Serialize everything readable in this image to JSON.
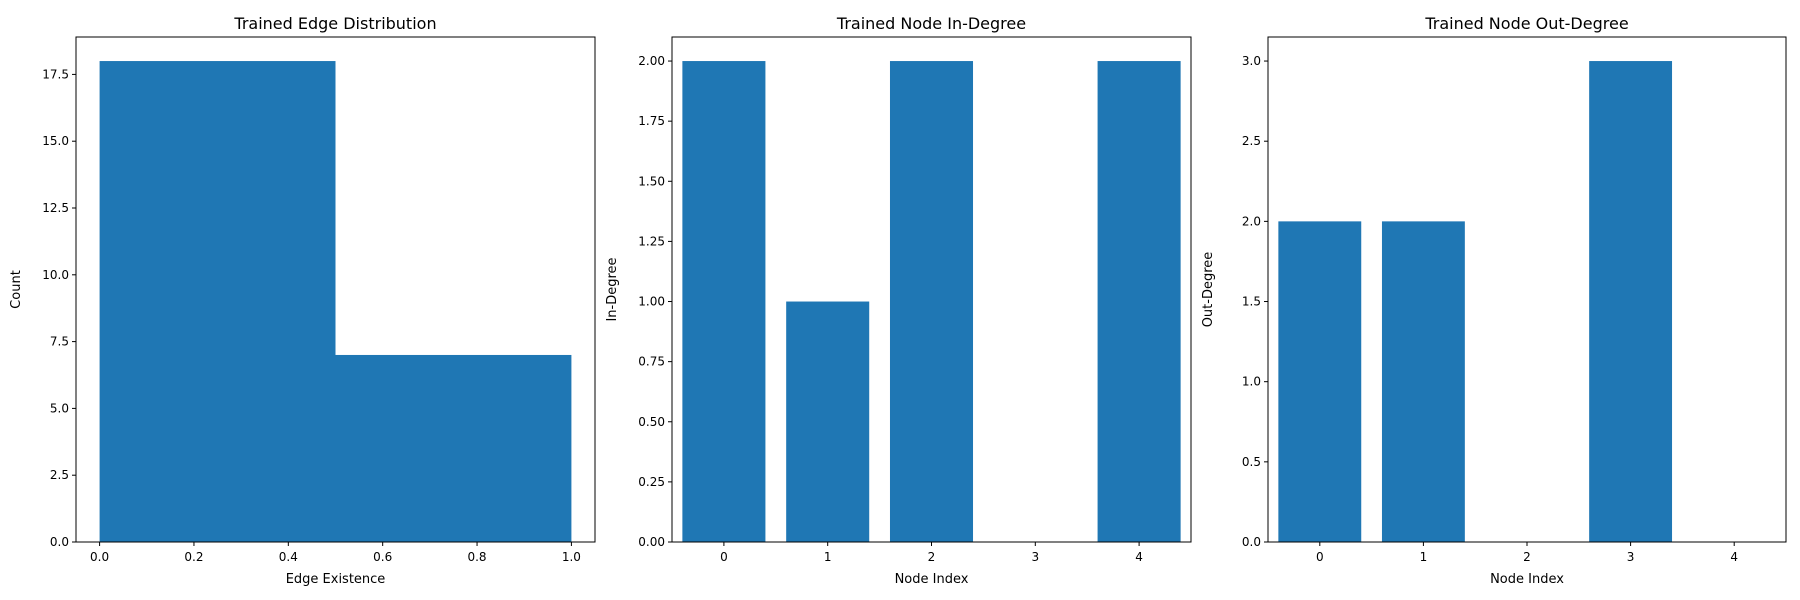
{
  "chart_data": [
    {
      "type": "bar",
      "subtype": "histogram",
      "title": "Trained Edge Distribution",
      "xlabel": "Edge Existence",
      "ylabel": "Count",
      "bins": [
        [
          0.0,
          0.5
        ],
        [
          0.5,
          1.0
        ]
      ],
      "values": [
        18,
        7
      ],
      "xlim": [
        -0.05,
        1.05
      ],
      "ylim": [
        0,
        18.9
      ],
      "xticks": [
        0.0,
        0.2,
        0.4,
        0.6,
        0.8,
        1.0
      ],
      "xtick_labels": [
        "0.0",
        "0.2",
        "0.4",
        "0.6",
        "0.8",
        "1.0"
      ],
      "yticks": [
        0.0,
        2.5,
        5.0,
        7.5,
        10.0,
        12.5,
        15.0,
        17.5
      ],
      "ytick_labels": [
        "0.0",
        "2.5",
        "5.0",
        "7.5",
        "10.0",
        "12.5",
        "15.0",
        "17.5"
      ],
      "color": "#1f77b4",
      "grid": false
    },
    {
      "type": "bar",
      "title": "Trained Node In-Degree",
      "xlabel": "Node Index",
      "ylabel": "In-Degree",
      "categories": [
        0,
        1,
        2,
        3,
        4
      ],
      "values": [
        2,
        1,
        2,
        0,
        2
      ],
      "xlim": [
        -0.5,
        4.5
      ],
      "ylim": [
        0,
        2.1
      ],
      "xticks": [
        0,
        1,
        2,
        3,
        4
      ],
      "xtick_labels": [
        "0",
        "1",
        "2",
        "3",
        "4"
      ],
      "yticks": [
        0.0,
        0.25,
        0.5,
        0.75,
        1.0,
        1.25,
        1.5,
        1.75,
        2.0
      ],
      "ytick_labels": [
        "0.00",
        "0.25",
        "0.50",
        "0.75",
        "1.00",
        "1.25",
        "1.50",
        "1.75",
        "2.00"
      ],
      "color": "#1f77b4",
      "grid": false
    },
    {
      "type": "bar",
      "title": "Trained Node Out-Degree",
      "xlabel": "Node Index",
      "ylabel": "Out-Degree",
      "categories": [
        0,
        1,
        2,
        3,
        4
      ],
      "values": [
        2,
        2,
        0,
        3,
        0
      ],
      "xlim": [
        -0.5,
        4.5
      ],
      "ylim": [
        0,
        3.15
      ],
      "xticks": [
        0,
        1,
        2,
        3,
        4
      ],
      "xtick_labels": [
        "0",
        "1",
        "2",
        "3",
        "4"
      ],
      "yticks": [
        0.0,
        0.5,
        1.0,
        1.5,
        2.0,
        2.5,
        3.0
      ],
      "ytick_labels": [
        "0.0",
        "0.5",
        "1.0",
        "1.5",
        "2.0",
        "2.5",
        "3.0"
      ],
      "color": "#1f77b4",
      "grid": false
    }
  ]
}
